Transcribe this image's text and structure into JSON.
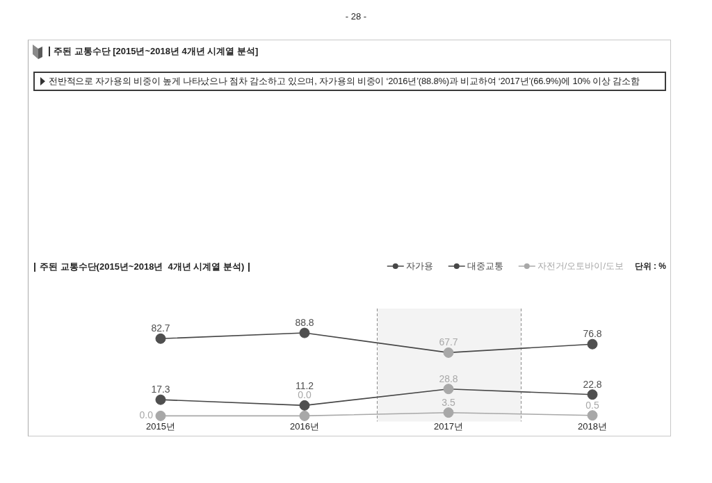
{
  "chart_data": {
    "type": "line",
    "title": "주된 교통수단 [2015년~2018년 4개년 시계열 분석]",
    "subtitle": "주된 교통수단(2015년~2018년  4개년 시계열 분석)",
    "annotations": [
      "- 28 -",
      "전반적으로 자가용의 비중이 높게 나타났으나 점차 감소하고 있으며, 자가용의 비중이 ‘2016년’(88.8%)과 비교하여 ‘2017년’(66.9%)에 10% 이상 감소함",
      "단위 : %"
    ],
    "categories": [
      "2015년",
      "2016년",
      "2017년",
      "2018년"
    ],
    "series": [
      {
        "name": "자가용",
        "color": "#474747",
        "colors": [
          "#4f4f4f",
          "#4f4f4f",
          "#a8a8a8",
          "#4f4f4f"
        ],
        "values": [
          82.7,
          88.8,
          67.7,
          76.8
        ],
        "value_labels": [
          "82.7",
          "88.8",
          "67.7",
          "76.8"
        ]
      },
      {
        "name": "대중교통",
        "color": "#474747",
        "colors": [
          "#4f4f4f",
          "#4f4f4f",
          "#a8a8a8",
          "#4f4f4f"
        ],
        "values": [
          17.3,
          11.2,
          28.8,
          22.8
        ],
        "value_labels": [
          "17.3",
          "11.2",
          "28.8",
          "22.8"
        ]
      },
      {
        "name": "자전거/오토바이/도보",
        "color": "#a8a8a8",
        "colors": [
          "#a8a8a8",
          "#a8a8a8",
          "#a8a8a8",
          "#a8a8a8"
        ],
        "values": [
          0,
          0,
          3.5,
          0.5
        ],
        "value_labels": [
          "0.0",
          "0.0",
          "3.5",
          "0.5"
        ]
      }
    ],
    "bands": [
      {
        "axis": "x",
        "from": "2017년",
        "to": "2017년",
        "color": "#f3f3f3"
      }
    ],
    "tick_labels": "x",
    "marker": "circle",
    "line_style": "solid",
    "legend": "top right"
  }
}
